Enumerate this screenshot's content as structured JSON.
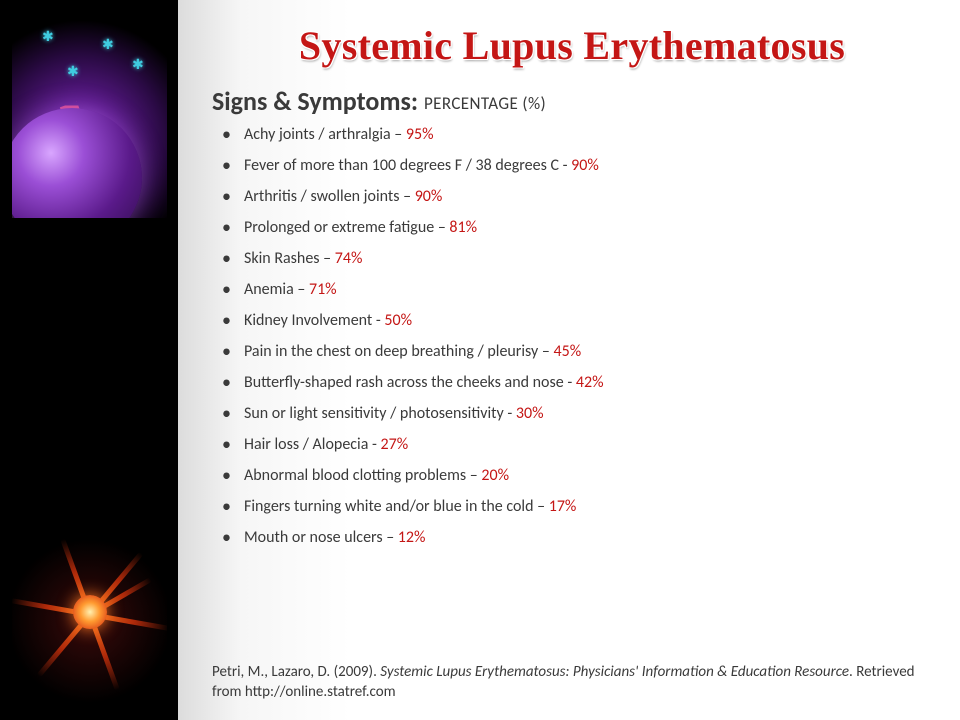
{
  "title": "Systemic Lupus Erythematosus",
  "subtitle_main": "Signs & Symptoms:",
  "subtitle_sub": "PERCENTAGE (%)",
  "symptoms": [
    {
      "label": "Achy joints / arthralgia",
      "sep": " – ",
      "pct": "95%"
    },
    {
      "label": "Fever of more than 100 degrees F / 38 degrees C",
      "sep": "  - ",
      "pct": "90%"
    },
    {
      "label": "Arthritis / swollen joints",
      "sep": " – ",
      "pct": "90%"
    },
    {
      "label": "Prolonged or extreme fatigue",
      "sep": " – ",
      "pct": "81%"
    },
    {
      "label": "Skin Rashes",
      "sep": " – ",
      "pct": "74%"
    },
    {
      "label": "Anemia",
      "sep": " – ",
      "pct": "71%"
    },
    {
      "label": "Kidney Involvement",
      "sep": "  - ",
      "pct": "50%"
    },
    {
      "label": "Pain in the chest on deep breathing / pleurisy",
      "sep": " – ",
      "pct": "45%"
    },
    {
      "label": "Butterfly-shaped rash across the cheeks and nose",
      "sep": "  - ",
      "pct": "42%"
    },
    {
      "label": "Sun or light sensitivity / photosensitivity",
      "sep": "  - ",
      "pct": "30%"
    },
    {
      "label": "Hair loss / Alopecia",
      "sep": " - ",
      "pct": "27%"
    },
    {
      "label": "Abnormal blood clotting problems",
      "sep": " – ",
      "pct": "20%"
    },
    {
      "label": "Fingers turning white and/or blue in the cold",
      "sep": " – ",
      "pct": "17%"
    },
    {
      "label": "Mouth or nose ulcers",
      "sep": " – ",
      "pct": "12%"
    }
  ],
  "citation": {
    "authors": "Petri, M., Lazaro, D. (2009). ",
    "title_italic": "Systemic Lupus Erythematosus: Physicians' Information & Education Resource",
    "tail": ". Retrieved from http://online.statref.com"
  },
  "colors": {
    "title_red": "#c41615",
    "text_gray": "#3a3a3a",
    "bg_white": "#ffffff",
    "sidebar_black": "#000000"
  }
}
